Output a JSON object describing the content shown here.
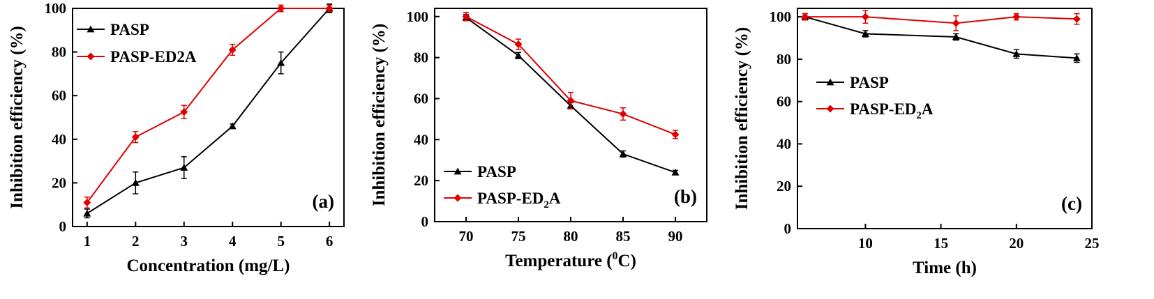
{
  "chart_data": [
    {
      "type": "line",
      "panel_label": "(a)",
      "xlabel": "Concentration (mg/L)",
      "ylabel": "Inhibition efficiency (%)",
      "xlim": [
        0.7,
        6.3
      ],
      "ylim": [
        0,
        100
      ],
      "xticks": [
        1,
        2,
        3,
        4,
        5,
        6
      ],
      "yticks": [
        0,
        20,
        40,
        60,
        80,
        100
      ],
      "legend_position": "top-left",
      "series": [
        {
          "name": "PASP",
          "color": "#000000",
          "marker": "triangle",
          "x": [
            1,
            2,
            3,
            4,
            5,
            6
          ],
          "y": [
            6,
            20,
            27,
            46,
            75,
            100
          ],
          "err": [
            2,
            5,
            5,
            1,
            5,
            2
          ]
        },
        {
          "name": "PASP-ED2A",
          "color": "#e00000",
          "marker": "diamond",
          "x": [
            1,
            2,
            3,
            4,
            5,
            6
          ],
          "y": [
            11,
            41,
            52.5,
            81,
            100,
            100
          ],
          "err": [
            2.5,
            2.5,
            3,
            2.5,
            1.5,
            1.5
          ]
        }
      ]
    },
    {
      "type": "line",
      "panel_label": "(b)",
      "xlabel": "Temperature (0C)",
      "ylabel": "Inhibition efficiency (%)",
      "xlim": [
        67,
        93
      ],
      "ylim": [
        0,
        104
      ],
      "xticks": [
        70,
        75,
        80,
        85,
        90
      ],
      "yticks": [
        0,
        20,
        40,
        60,
        80,
        100
      ],
      "legend_position": "bottom-left",
      "series": [
        {
          "name": "PASP",
          "color": "#000000",
          "marker": "triangle",
          "x": [
            70,
            75,
            80,
            85,
            90
          ],
          "y": [
            99.5,
            81,
            56.5,
            33,
            24
          ],
          "err": [
            1.5,
            1.5,
            1.5,
            1.5,
            1
          ]
        },
        {
          "name": "PASP-ED2A",
          "color": "#e00000",
          "marker": "diamond",
          "x": [
            70,
            75,
            80,
            85,
            90
          ],
          "y": [
            100,
            86.5,
            59,
            52.5,
            42.5
          ],
          "err": [
            2,
            2.5,
            4,
            3,
            2
          ]
        }
      ]
    },
    {
      "type": "line",
      "panel_label": "(c)",
      "xlabel": "Time (h)",
      "ylabel": "Inhibition efficiency (%)",
      "xlim": [
        5.5,
        25
      ],
      "ylim": [
        0,
        104
      ],
      "xticks": [
        10,
        15,
        20,
        25
      ],
      "yticks": [
        0,
        20,
        40,
        60,
        80,
        100
      ],
      "legend_position": "center-left",
      "series": [
        {
          "name": "PASP",
          "color": "#000000",
          "marker": "triangle",
          "x": [
            6,
            10,
            16,
            20,
            24
          ],
          "y": [
            100,
            92,
            90.5,
            82.5,
            80.5
          ],
          "err": [
            1.5,
            1.5,
            1.5,
            2,
            2
          ]
        },
        {
          "name": "PASP-ED2A",
          "color": "#e00000",
          "marker": "diamond",
          "x": [
            6,
            10,
            16,
            20,
            24
          ],
          "y": [
            100,
            100,
            97,
            100,
            99
          ],
          "err": [
            1.5,
            3,
            3.5,
            1.5,
            2.5
          ]
        }
      ]
    }
  ]
}
